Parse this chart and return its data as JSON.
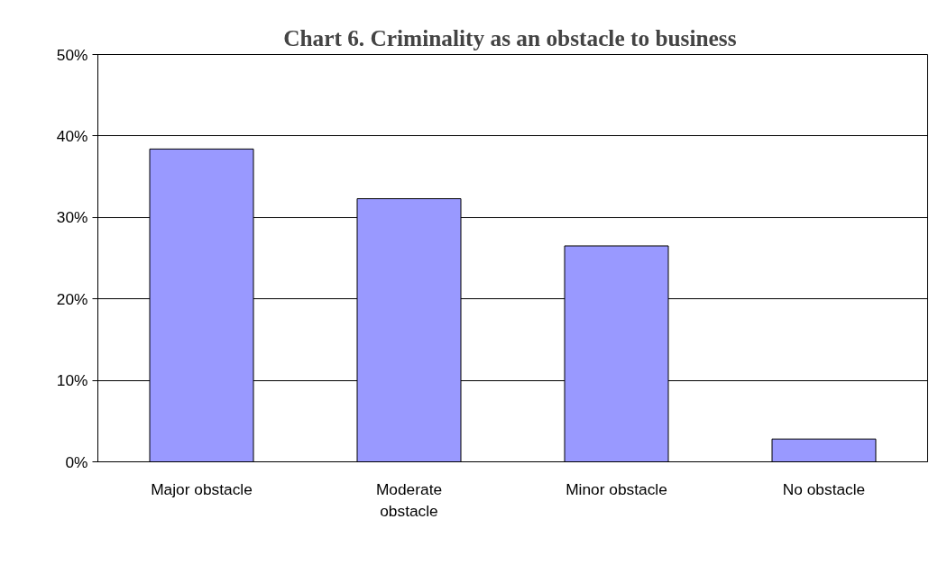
{
  "chart_data": {
    "type": "bar",
    "title": "Chart 6.  Criminality as an obstacle to business",
    "categories": [
      "Major obstacle",
      "Moderate obstacle",
      "Minor obstacle",
      "No obstacle"
    ],
    "values": [
      38.4,
      32.3,
      26.5,
      2.8
    ],
    "color": "#9999ff",
    "ylim": [
      0,
      50
    ],
    "yticks": [
      {
        "value": 0,
        "label": "0%"
      },
      {
        "value": 10,
        "label": "10%"
      },
      {
        "value": 20,
        "label": "20%"
      },
      {
        "value": 30,
        "label": "30%"
      },
      {
        "value": 40,
        "label": "40%"
      },
      {
        "value": 50,
        "label": "50%"
      }
    ],
    "grid": "y"
  }
}
